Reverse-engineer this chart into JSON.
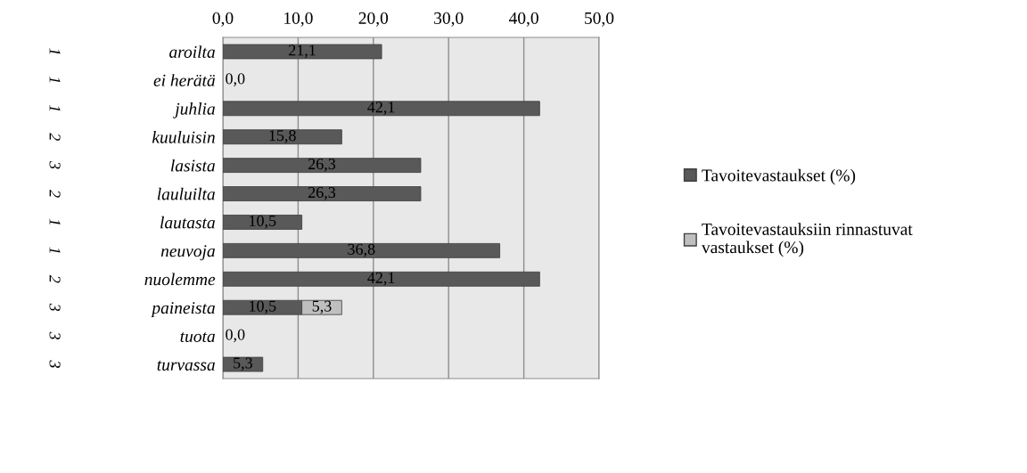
{
  "chart_data": {
    "type": "bar",
    "orientation": "horizontal",
    "stacked": true,
    "categories": [
      "aroilta",
      "ei herätä",
      "juhlia",
      "kuuluisin",
      "lasista",
      "lauluilta",
      "lautasta",
      "neuvoja",
      "nuolemme",
      "paineista",
      "tuota",
      "turvassa"
    ],
    "series": [
      {
        "name": "Tavoitevastaukset (%)",
        "color": "#595959",
        "values": [
          21.1,
          0.0,
          42.1,
          15.8,
          26.3,
          26.3,
          10.5,
          36.8,
          42.1,
          10.5,
          0.0,
          5.3
        ],
        "value_labels": [
          "21,1",
          "0,0",
          "42,1",
          "15,8",
          "26,3",
          "26,3",
          "10,5",
          "36,8",
          "42,1",
          "10,5",
          "0,0",
          "5,3"
        ]
      },
      {
        "name": "Tavoitevastauksiin rinnastuvat vastaukset (%)",
        "color": "#bfbfbf",
        "values": [
          0,
          0,
          0,
          0,
          0,
          0,
          0,
          0,
          0,
          5.3,
          0,
          0
        ],
        "value_labels": [
          null,
          null,
          null,
          null,
          null,
          null,
          null,
          null,
          null,
          "5,3",
          null,
          null
        ]
      }
    ],
    "annotations": [
      "1",
      "1",
      "1",
      "2",
      "3",
      "2",
      "1",
      "1",
      "2",
      "3",
      "3",
      "3"
    ],
    "xlim": [
      0,
      50
    ],
    "xticks": [
      {
        "value": 0,
        "label": "0,0"
      },
      {
        "value": 10,
        "label": "10,0"
      },
      {
        "value": 20,
        "label": "20,0"
      },
      {
        "value": 30,
        "label": "30,0"
      },
      {
        "value": 40,
        "label": "40,0"
      },
      {
        "value": 50,
        "label": "50,0"
      }
    ],
    "grid": "x",
    "legend": "right"
  }
}
